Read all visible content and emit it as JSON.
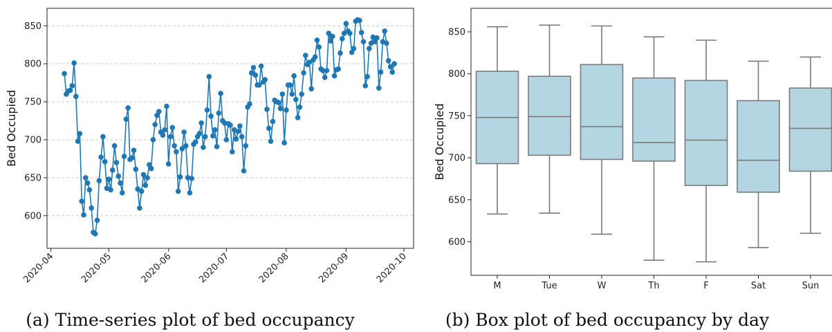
{
  "captions": {
    "a": "(a) Time-series plot of bed occupancy",
    "b": "(b) Box plot of bed occupancy by day"
  },
  "chart_data": [
    {
      "type": "line",
      "ylabel": "Bed Occupied",
      "xlabel": "",
      "xlim": [
        "2020-03-30",
        "2020-10-06"
      ],
      "ylim": [
        557,
        873
      ],
      "yticks": [
        600,
        650,
        700,
        750,
        800,
        850
      ],
      "xticks": [
        {
          "date": "2020-04-01",
          "label": "2020-04"
        },
        {
          "date": "2020-05-01",
          "label": "2020-05"
        },
        {
          "date": "2020-06-01",
          "label": "2020-06"
        },
        {
          "date": "2020-07-01",
          "label": "2020-07"
        },
        {
          "date": "2020-08-01",
          "label": "2020-08"
        },
        {
          "date": "2020-09-01",
          "label": "2020-09"
        },
        {
          "date": "2020-10-01",
          "label": "2020-10"
        }
      ],
      "grid": "horizontal-dashed",
      "markers": true,
      "color": "#1f77b4",
      "points": [
        [
          "2020-04-08",
          787
        ],
        [
          "2020-04-09",
          760
        ],
        [
          "2020-04-10",
          764
        ],
        [
          "2020-04-11",
          765
        ],
        [
          "2020-04-12",
          771
        ],
        [
          "2020-04-13",
          801
        ],
        [
          "2020-04-14",
          757
        ],
        [
          "2020-04-15",
          698
        ],
        [
          "2020-04-16",
          708
        ],
        [
          "2020-04-17",
          619
        ],
        [
          "2020-04-18",
          601
        ],
        [
          "2020-04-19",
          650
        ],
        [
          "2020-04-20",
          643
        ],
        [
          "2020-04-21",
          634
        ],
        [
          "2020-04-22",
          610
        ],
        [
          "2020-04-23",
          578
        ],
        [
          "2020-04-24",
          576
        ],
        [
          "2020-04-25",
          594
        ],
        [
          "2020-04-26",
          646
        ],
        [
          "2020-04-27",
          677
        ],
        [
          "2020-04-28",
          704
        ],
        [
          "2020-04-29",
          671
        ],
        [
          "2020-04-30",
          636
        ],
        [
          "2020-05-01",
          648
        ],
        [
          "2020-05-02",
          634
        ],
        [
          "2020-05-03",
          660
        ],
        [
          "2020-05-04",
          692
        ],
        [
          "2020-05-05",
          670
        ],
        [
          "2020-05-06",
          652
        ],
        [
          "2020-05-07",
          643
        ],
        [
          "2020-05-08",
          630
        ],
        [
          "2020-05-09",
          678
        ],
        [
          "2020-05-10",
          727
        ],
        [
          "2020-05-11",
          742
        ],
        [
          "2020-05-12",
          674
        ],
        [
          "2020-05-13",
          676
        ],
        [
          "2020-05-14",
          686
        ],
        [
          "2020-05-15",
          661
        ],
        [
          "2020-05-16",
          635
        ],
        [
          "2020-05-17",
          610
        ],
        [
          "2020-05-18",
          632
        ],
        [
          "2020-05-19",
          654
        ],
        [
          "2020-05-20",
          640
        ],
        [
          "2020-05-21",
          650
        ],
        [
          "2020-05-22",
          667
        ],
        [
          "2020-05-23",
          662
        ],
        [
          "2020-05-24",
          700
        ],
        [
          "2020-05-25",
          720
        ],
        [
          "2020-05-26",
          732
        ],
        [
          "2020-05-27",
          737
        ],
        [
          "2020-05-28",
          710
        ],
        [
          "2020-05-29",
          706
        ],
        [
          "2020-05-30",
          713
        ],
        [
          "2020-05-31",
          744
        ],
        [
          "2020-06-01",
          668
        ],
        [
          "2020-06-02",
          704
        ],
        [
          "2020-06-03",
          716
        ],
        [
          "2020-06-04",
          692
        ],
        [
          "2020-06-05",
          684
        ],
        [
          "2020-06-06",
          632
        ],
        [
          "2020-06-07",
          651
        ],
        [
          "2020-06-08",
          688
        ],
        [
          "2020-06-09",
          710
        ],
        [
          "2020-06-10",
          692
        ],
        [
          "2020-06-11",
          650
        ],
        [
          "2020-06-12",
          630
        ],
        [
          "2020-06-13",
          649
        ],
        [
          "2020-06-14",
          694
        ],
        [
          "2020-06-15",
          697
        ],
        [
          "2020-06-16",
          704
        ],
        [
          "2020-06-17",
          708
        ],
        [
          "2020-06-18",
          722
        ],
        [
          "2020-06-19",
          690
        ],
        [
          "2020-06-20",
          704
        ],
        [
          "2020-06-21",
          739
        ],
        [
          "2020-06-22",
          783
        ],
        [
          "2020-06-23",
          731
        ],
        [
          "2020-06-24",
          705
        ],
        [
          "2020-06-25",
          713
        ],
        [
          "2020-06-26",
          691
        ],
        [
          "2020-06-27",
          735
        ],
        [
          "2020-06-28",
          761
        ],
        [
          "2020-06-29",
          725
        ],
        [
          "2020-06-30",
          722
        ],
        [
          "2020-07-01",
          700
        ],
        [
          "2020-07-02",
          721
        ],
        [
          "2020-07-03",
          719
        ],
        [
          "2020-07-04",
          684
        ],
        [
          "2020-07-05",
          713
        ],
        [
          "2020-07-06",
          701
        ],
        [
          "2020-07-07",
          711
        ],
        [
          "2020-07-08",
          718
        ],
        [
          "2020-07-09",
          704
        ],
        [
          "2020-07-10",
          659
        ],
        [
          "2020-07-11",
          692
        ],
        [
          "2020-07-12",
          743
        ],
        [
          "2020-07-13",
          747
        ],
        [
          "2020-07-14",
          788
        ],
        [
          "2020-07-15",
          795
        ],
        [
          "2020-07-16",
          785
        ],
        [
          "2020-07-17",
          772
        ],
        [
          "2020-07-18",
          772
        ],
        [
          "2020-07-19",
          797
        ],
        [
          "2020-07-20",
          776
        ],
        [
          "2020-07-21",
          779
        ],
        [
          "2020-07-22",
          740
        ],
        [
          "2020-07-23",
          715
        ],
        [
          "2020-07-24",
          698
        ],
        [
          "2020-07-25",
          724
        ],
        [
          "2020-07-26",
          752
        ],
        [
          "2020-07-27",
          750
        ],
        [
          "2020-07-28",
          749
        ],
        [
          "2020-07-29",
          741
        ],
        [
          "2020-07-30",
          760
        ],
        [
          "2020-07-31",
          696
        ],
        [
          "2020-08-01",
          739
        ],
        [
          "2020-08-02",
          772
        ],
        [
          "2020-08-03",
          772
        ],
        [
          "2020-08-04",
          760
        ],
        [
          "2020-08-05",
          784
        ],
        [
          "2020-08-06",
          753
        ],
        [
          "2020-08-07",
          729
        ],
        [
          "2020-08-08",
          743
        ],
        [
          "2020-08-09",
          760
        ],
        [
          "2020-08-10",
          788
        ],
        [
          "2020-08-11",
          811
        ],
        [
          "2020-08-12",
          799
        ],
        [
          "2020-08-13",
          802
        ],
        [
          "2020-08-14",
          767
        ],
        [
          "2020-08-15",
          805
        ],
        [
          "2020-08-16",
          809
        ],
        [
          "2020-08-17",
          831
        ],
        [
          "2020-08-18",
          822
        ],
        [
          "2020-08-19",
          793
        ],
        [
          "2020-08-20",
          791
        ],
        [
          "2020-08-21",
          782
        ],
        [
          "2020-08-22",
          791
        ],
        [
          "2020-08-23",
          840
        ],
        [
          "2020-08-24",
          830
        ],
        [
          "2020-08-25",
          836
        ],
        [
          "2020-08-26",
          784
        ],
        [
          "2020-08-27",
          792
        ],
        [
          "2020-08-28",
          793
        ],
        [
          "2020-08-29",
          814
        ],
        [
          "2020-08-30",
          833
        ],
        [
          "2020-08-31",
          840
        ],
        [
          "2020-09-01",
          853
        ],
        [
          "2020-09-02",
          843
        ],
        [
          "2020-09-03",
          840
        ],
        [
          "2020-09-04",
          815
        ],
        [
          "2020-09-05",
          820
        ],
        [
          "2020-09-06",
          856
        ],
        [
          "2020-09-07",
          858
        ],
        [
          "2020-09-08",
          857
        ],
        [
          "2020-09-09",
          841
        ],
        [
          "2020-09-10",
          829
        ],
        [
          "2020-09-11",
          771
        ],
        [
          "2020-09-12",
          783
        ],
        [
          "2020-09-13",
          820
        ],
        [
          "2020-09-14",
          827
        ],
        [
          "2020-09-15",
          835
        ],
        [
          "2020-09-16",
          829
        ],
        [
          "2020-09-17",
          834
        ],
        [
          "2020-09-18",
          768
        ],
        [
          "2020-09-19",
          789
        ],
        [
          "2020-09-20",
          829
        ],
        [
          "2020-09-21",
          843
        ],
        [
          "2020-09-22",
          827
        ],
        [
          "2020-09-23",
          804
        ],
        [
          "2020-09-24",
          796
        ],
        [
          "2020-09-25",
          789
        ],
        [
          "2020-09-26",
          800
        ]
      ]
    },
    {
      "type": "box",
      "ylabel": "Bed Occupied",
      "xlabel": "",
      "ylim": [
        560,
        878
      ],
      "yticks": [
        600,
        650,
        700,
        750,
        800,
        850
      ],
      "box_color": "#b3d6e2",
      "edge_color": "#7a7a7a",
      "categories": [
        "M",
        "Tue",
        "W",
        "Th",
        "F",
        "Sat",
        "Sun"
      ],
      "boxes": [
        {
          "label": "M",
          "whislo": 633,
          "q1": 693,
          "med": 748,
          "q3": 803,
          "whishi": 856
        },
        {
          "label": "Tue",
          "whislo": 634,
          "q1": 703,
          "med": 749,
          "q3": 797,
          "whishi": 858
        },
        {
          "label": "W",
          "whislo": 609,
          "q1": 698,
          "med": 737,
          "q3": 811,
          "whishi": 857
        },
        {
          "label": "Th",
          "whislo": 578,
          "q1": 696,
          "med": 718,
          "q3": 795,
          "whishi": 844
        },
        {
          "label": "F",
          "whislo": 576,
          "q1": 667,
          "med": 721,
          "q3": 792,
          "whishi": 840
        },
        {
          "label": "Sat",
          "whislo": 593,
          "q1": 659,
          "med": 697,
          "q3": 768,
          "whishi": 815
        },
        {
          "label": "Sun",
          "whislo": 610,
          "q1": 684,
          "med": 735,
          "q3": 783,
          "whishi": 820
        }
      ]
    }
  ]
}
